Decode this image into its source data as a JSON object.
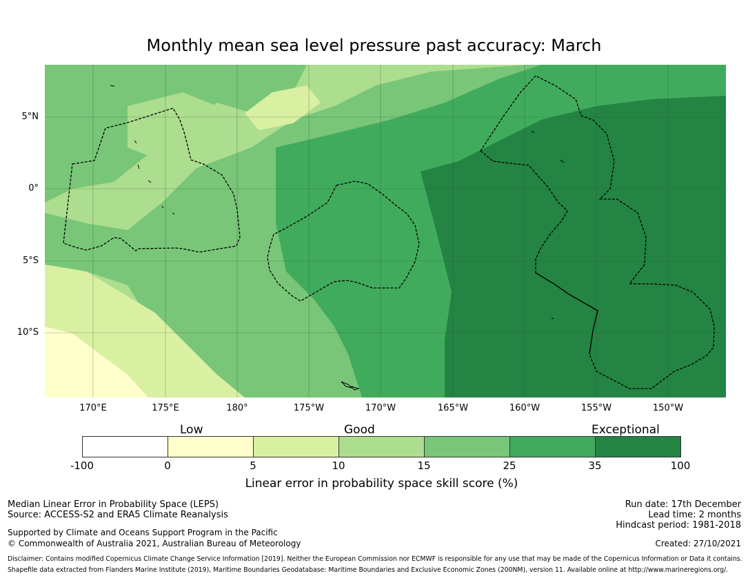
{
  "title": "Monthly mean sea level pressure past accuracy: March",
  "map": {
    "lat_labels": [
      "5°N",
      "0°",
      "5°S",
      "10°S"
    ],
    "lon_labels": [
      "170°E",
      "175°E",
      "180°",
      "175°W",
      "170°W",
      "165°W",
      "160°W",
      "155°W",
      "150°W"
    ],
    "colors": {
      "ocean_good": "#79c679",
      "ocean_medium": "#41ab5d",
      "ocean_exceptional": "#238443",
      "ocean_light": "#addd8e",
      "ocean_pale": "#d9f0a3",
      "ocean_palest": "#ffffcc",
      "eez_line": "#000000",
      "grid": "#2f4f2f"
    }
  },
  "legend": {
    "categories": [
      "Low",
      "Good",
      "Exceptional"
    ],
    "tick_labels": [
      "-100",
      "0",
      "5",
      "10",
      "15",
      "25",
      "35",
      "100"
    ],
    "bin_colors": [
      "#ffffff",
      "#ffffcc",
      "#d9f0a3",
      "#addd8e",
      "#79c679",
      "#41ab5d",
      "#238443"
    ],
    "label": "Linear error in probability space skill score (%)"
  },
  "footer": {
    "left_line1": "Median Linear Error in Probability Space (LEPS)",
    "left_line2": "Source: ACCESS-S2 and ERA5 Climate Reanalysis",
    "left_line3": "Supported by Climate and Oceans Support Program in the Pacific",
    "left_line4": "© Commonwealth of Australia 2021, Australian Bureau of Meteorology",
    "run_date": "Run date: 17th December",
    "lead_time": "Lead time: 2 months",
    "hindcast": "Hindcast period: 1981-2018",
    "created": "Created: 27/10/2021",
    "disclaimer1": "Disclaimer: Contains modified Copernicus Climate Change Service Information [2019]. Neither the European Commission nor ECMWF is responsible for any use that may be made of the Copernicus Information or Data it contains.",
    "disclaimer2": "Shapefile data extracted from Flanders Marine Institute (2019), Maritime Boundaries Geodatabase: Maritime Boundaries and Exclusive Economic Zones (200NM), version 11. Available online at http://www.marineregions.org/."
  }
}
